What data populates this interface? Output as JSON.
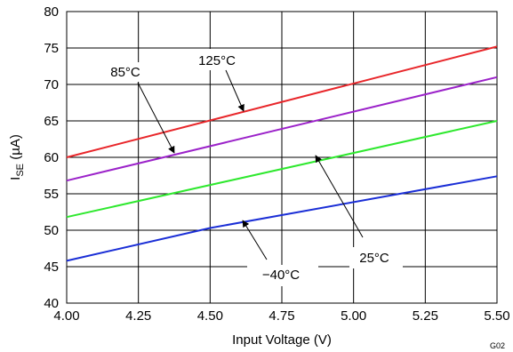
{
  "chart_data": {
    "type": "line",
    "xlabel": "Input Voltage (V)",
    "ylabel_main": "I",
    "ylabel_sub": "SE",
    "ylabel_unit": " (µA)",
    "xlim": [
      4.0,
      5.5
    ],
    "ylim": [
      40,
      80
    ],
    "xticks": [
      "4.00",
      "4.25",
      "4.50",
      "4.75",
      "5.00",
      "5.25",
      "5.50"
    ],
    "yticks": [
      "40",
      "45",
      "50",
      "55",
      "60",
      "65",
      "70",
      "75",
      "80"
    ],
    "grid": true,
    "figure_code": "G02",
    "series": [
      {
        "name": "125°C",
        "color": "#e8262a",
        "x": [
          4.0,
          5.5
        ],
        "y": [
          60.0,
          75.2
        ]
      },
      {
        "name": "85°C",
        "color": "#9b22c9",
        "x": [
          4.0,
          5.5
        ],
        "y": [
          56.8,
          71.0
        ]
      },
      {
        "name": "25°C",
        "color": "#2ee82e",
        "x": [
          4.0,
          5.5
        ],
        "y": [
          51.8,
          65.0
        ]
      },
      {
        "name": "−40°C",
        "color": "#1a2ed6",
        "x": [
          4.0,
          4.5,
          5.5
        ],
        "y": [
          45.8,
          50.3,
          57.4
        ]
      }
    ]
  }
}
